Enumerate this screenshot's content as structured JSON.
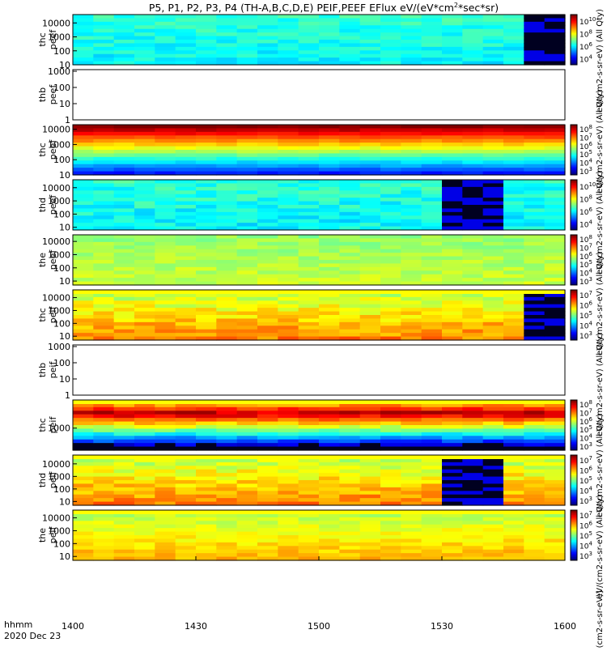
{
  "chart_data": {
    "type": "heatmap",
    "title": "P5, P1, P2, P3, P4 (TH-A,B,C,D,E) PEIF,PEEF EFlux eV/(eV*cm^2*sec*sr)",
    "title_parts": {
      "main": "P5, P1, P2, P3, P4 (TH-A,B,C,D,E) PEIF,PEEF EFlux eV/(eV*cm",
      "sup": "2",
      "tail": "*sec*sr)"
    },
    "x_axis": {
      "label_line1": "hhmm",
      "label_line2": "2020 Dec 23",
      "range": [
        "1400",
        "1600"
      ],
      "ticks": [
        "1400",
        "1430",
        "1500",
        "1530",
        "1600"
      ]
    },
    "colorbar_label": "eV/(cm^2-s-sr-eV)",
    "panels": [
      {
        "name": "thc peef",
        "ylabel": [
          "thc",
          "peef"
        ],
        "yticks": [
          "10",
          "100",
          "1000",
          "10000"
        ],
        "ylim_log": [
          1,
          4.6
        ],
        "cbar": [
          "10",
          "4",
          "10",
          "6",
          "10",
          "8",
          "10",
          "10"
        ],
        "cbar_exp": [
          4,
          6,
          8,
          10
        ],
        "has_data": true,
        "band": null
      },
      {
        "name": "thb peef",
        "ylabel": [
          "thb",
          "peef"
        ],
        "yticks": [
          "1",
          "10",
          "100",
          "1000"
        ],
        "ylim_log": [
          0,
          3.1
        ],
        "cbar_exp": [],
        "has_data": false,
        "band": null
      },
      {
        "name": "thc peef",
        "ylabel": [
          "thc",
          "peef"
        ],
        "yticks": [
          "10",
          "100",
          "1000",
          "10000"
        ],
        "ylim_log": [
          1,
          4.3
        ],
        "cbar_exp": [
          3,
          4,
          5,
          6,
          7,
          8
        ],
        "has_data": true,
        "band": null
      },
      {
        "name": "thd peef",
        "ylabel": [
          "thd",
          "peef"
        ],
        "yticks": [
          "10",
          "100",
          "1000",
          "10000"
        ],
        "ylim_log": [
          0.8,
          4.6
        ],
        "cbar_exp": [
          4,
          6,
          8,
          10
        ],
        "has_data": true,
        "band": null
      },
      {
        "name": "the peef",
        "ylabel": [
          "the",
          "peef"
        ],
        "yticks": [
          "10",
          "100",
          "1000",
          "10000"
        ],
        "ylim_log": [
          0.7,
          4.5
        ],
        "cbar_exp": [
          3,
          4,
          5,
          6,
          7,
          8
        ],
        "has_data": true,
        "band": null
      },
      {
        "name": "thc peif",
        "ylabel": [
          "thc",
          "peif"
        ],
        "yticks": [
          "10",
          "100",
          "1000",
          "10000"
        ],
        "ylim_log": [
          0.7,
          4.6
        ],
        "cbar_exp": [
          3,
          4,
          5,
          6,
          7
        ],
        "has_data": true,
        "band": "top"
      },
      {
        "name": "thb peif",
        "ylabel": [
          "thb",
          "peif"
        ],
        "yticks": [
          "1",
          "10",
          "100",
          "1000"
        ],
        "ylim_log": [
          0,
          3.1
        ],
        "cbar_exp": [],
        "has_data": false,
        "band": null
      },
      {
        "name": "thc peif",
        "ylabel": [
          "thc",
          "peif"
        ],
        "yticks": [
          "1000"
        ],
        "ylim_log": [
          1.9,
          4.4
        ],
        "cbar_exp": [
          3,
          4,
          5,
          6,
          7,
          8
        ],
        "has_data": true,
        "band": "top"
      },
      {
        "name": "thd peif",
        "ylabel": [
          "thd",
          "peif"
        ],
        "yticks": [
          "10",
          "100",
          "1000",
          "10000"
        ],
        "ylim_log": [
          0.7,
          4.7
        ],
        "cbar_exp": [
          3,
          4,
          5,
          6,
          7
        ],
        "has_data": true,
        "band": "top"
      },
      {
        "name": "the peif",
        "ylabel": [
          "the",
          "peif"
        ],
        "yticks": [
          "10",
          "100",
          "1000",
          "10000"
        ],
        "ylim_log": [
          0.7,
          4.6
        ],
        "cbar_exp": [
          3,
          4,
          5,
          6,
          7
        ],
        "has_data": true,
        "band": "top"
      }
    ],
    "ylabel_right_texts": [
      "eV/(cm2-s-sr-eV) (All Qty)",
      "eV/(cm2-s-sr-eV) (All Qty)",
      "eV/(cm2-s-sr-eV) (All Qty)",
      "eV/(cm2-s-sr-eV) (All Qty)",
      "eV/(cm2-s-sr-eV) (All Qty)",
      "eV/(cm2-s-sr-eV) (All Qty)",
      "eV/(cm2-s-sr-eV) (All Qty)",
      "[eV/(cm2-s-sr-eV)]"
    ]
  }
}
